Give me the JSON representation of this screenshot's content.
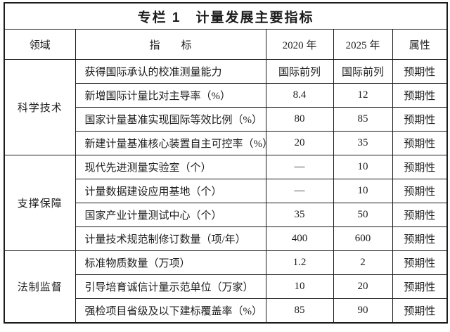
{
  "title": "专栏 1　计量发展主要指标",
  "colors": {
    "background": "#ffffff",
    "border": "#1c1c1c",
    "text": "#1c1c1c"
  },
  "table": {
    "headers": [
      "领域",
      "指　　标",
      "2020 年",
      "2025 年",
      "属性"
    ],
    "groups": [
      {
        "domain": "科学技术",
        "rows": [
          {
            "indicator": "获得国际承认的校准测量能力",
            "y2020": "国际前列",
            "y2025": "国际前列",
            "attr": "预期性"
          },
          {
            "indicator": "新增国际计量比对主导率（%）",
            "y2020": "8.4",
            "y2025": "12",
            "attr": "预期性"
          },
          {
            "indicator": "国家计量基准实现国际等效比例（%）",
            "y2020": "80",
            "y2025": "85",
            "attr": "预期性"
          },
          {
            "indicator": "新建计量基准核心装置自主可控率（%）",
            "y2020": "20",
            "y2025": "35",
            "attr": "预期性"
          }
        ]
      },
      {
        "domain": "支撑保障",
        "rows": [
          {
            "indicator": "现代先进测量实验室（个）",
            "y2020": "—",
            "y2025": "10",
            "attr": "预期性"
          },
          {
            "indicator": "计量数据建设应用基地（个）",
            "y2020": "—",
            "y2025": "10",
            "attr": "预期性"
          },
          {
            "indicator": "国家产业计量测试中心（个）",
            "y2020": "35",
            "y2025": "50",
            "attr": "预期性"
          },
          {
            "indicator": "计量技术规范制修订数量（项/年）",
            "y2020": "400",
            "y2025": "600",
            "attr": "预期性"
          }
        ]
      },
      {
        "domain": "法制监督",
        "rows": [
          {
            "indicator": "标准物质数量（万项）",
            "y2020": "1.2",
            "y2025": "2",
            "attr": "预期性"
          },
          {
            "indicator": "引导培育诚信计量示范单位（万家）",
            "y2020": "10",
            "y2025": "20",
            "attr": "预期性"
          },
          {
            "indicator": "强检项目省级及以下建标覆盖率（%）",
            "y2020": "85",
            "y2025": "90",
            "attr": "预期性"
          }
        ]
      }
    ]
  }
}
